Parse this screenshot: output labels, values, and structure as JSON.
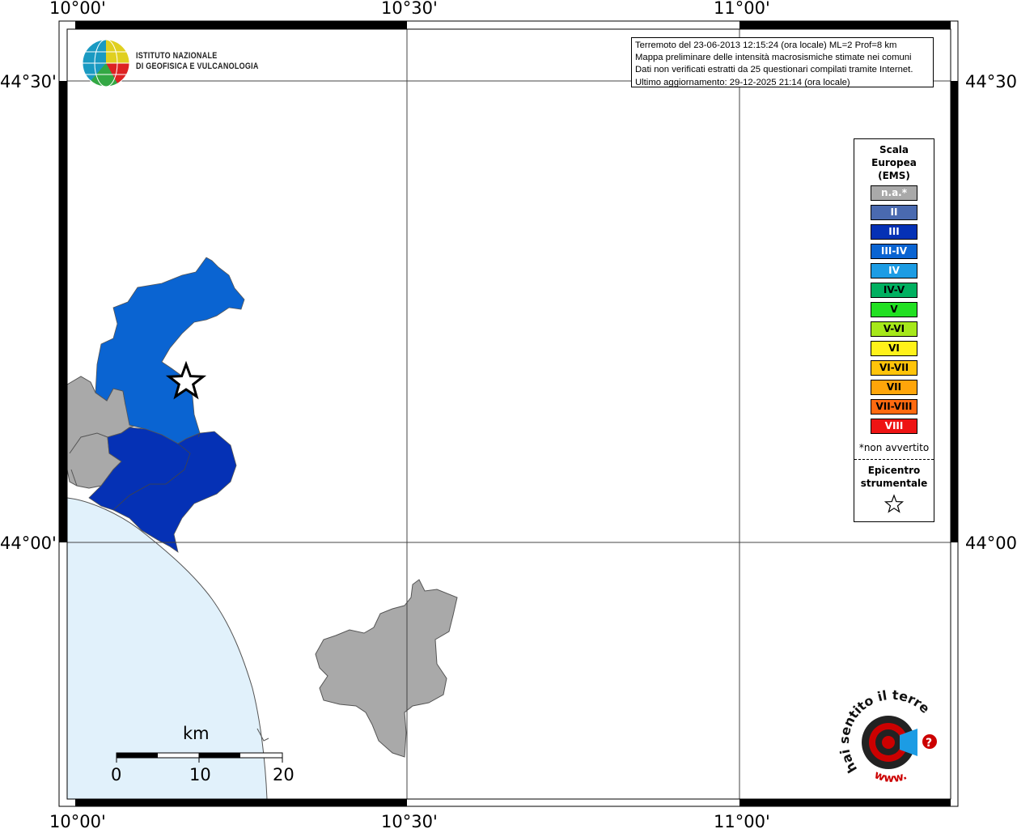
{
  "map": {
    "coords": {
      "top_lon": [
        "10°00'",
        "10°30'",
        "11°00'"
      ],
      "bottom_lon": [
        "10°00'",
        "10°30'",
        "11°00'"
      ],
      "left_lat": [
        "44°30'",
        "44°00'"
      ],
      "right_lat": [
        "44°30'",
        "44°00'"
      ]
    },
    "scalebar": {
      "unit": "km",
      "labels": [
        "0",
        "10",
        "20"
      ]
    },
    "colors": {
      "sea": "#e1f1fb",
      "na": "#a9a9a9",
      "iii": "#0531b5",
      "iii_iv": "#0a64d2",
      "border": "#555555"
    }
  },
  "info": {
    "line1": "Terremoto del 23-06-2013 12:15:24 (ora locale) ML=2 Prof=8 km",
    "line2": "Mappa preliminare delle intensità macrosismiche stimate nei comuni",
    "line3": "Dati non verificati estratti da 25 questionari compilati tramite Internet.",
    "line4": "Ultimo aggiornamento: 29-12-2025 21:14 (ora locale)"
  },
  "logo": {
    "line1": "ISTITUTO NAZIONALE",
    "line2": "DI GEOFISICA E VULCANOLOGIA"
  },
  "legend": {
    "title_l1": "Scala",
    "title_l2": "Europea",
    "title_l3": "(EMS)",
    "items": [
      {
        "label": "n.a.*",
        "color": "#a9a9a9",
        "text": "#ffffff"
      },
      {
        "label": "II",
        "color": "#4a6ab0",
        "text": "#ffffff"
      },
      {
        "label": "III",
        "color": "#0531b5",
        "text": "#ffffff"
      },
      {
        "label": "III-IV",
        "color": "#0a64d2",
        "text": "#ffffff"
      },
      {
        "label": "IV",
        "color": "#1c9ce4",
        "text": "#ffffff"
      },
      {
        "label": "IV-V",
        "color": "#00b060",
        "text": "#000000"
      },
      {
        "label": "V",
        "color": "#22e022",
        "text": "#000000"
      },
      {
        "label": "V-VI",
        "color": "#a6e81a",
        "text": "#000000"
      },
      {
        "label": "VI",
        "color": "#fff21a",
        "text": "#000000"
      },
      {
        "label": "VI-VII",
        "color": "#ffc40a",
        "text": "#000000"
      },
      {
        "label": "VII",
        "color": "#ffa50a",
        "text": "#000000"
      },
      {
        "label": "VII-VIII",
        "color": "#ff6a10",
        "text": "#000000"
      },
      {
        "label": "VIII",
        "color": "#ee1414",
        "text": "#ffffff"
      }
    ],
    "note": "*non avvertito",
    "epi_l1": "Epicentro",
    "epi_l2": "strumentale"
  },
  "hsit": {
    "text": "hai sentito il terremoto.it",
    "url": "www."
  }
}
